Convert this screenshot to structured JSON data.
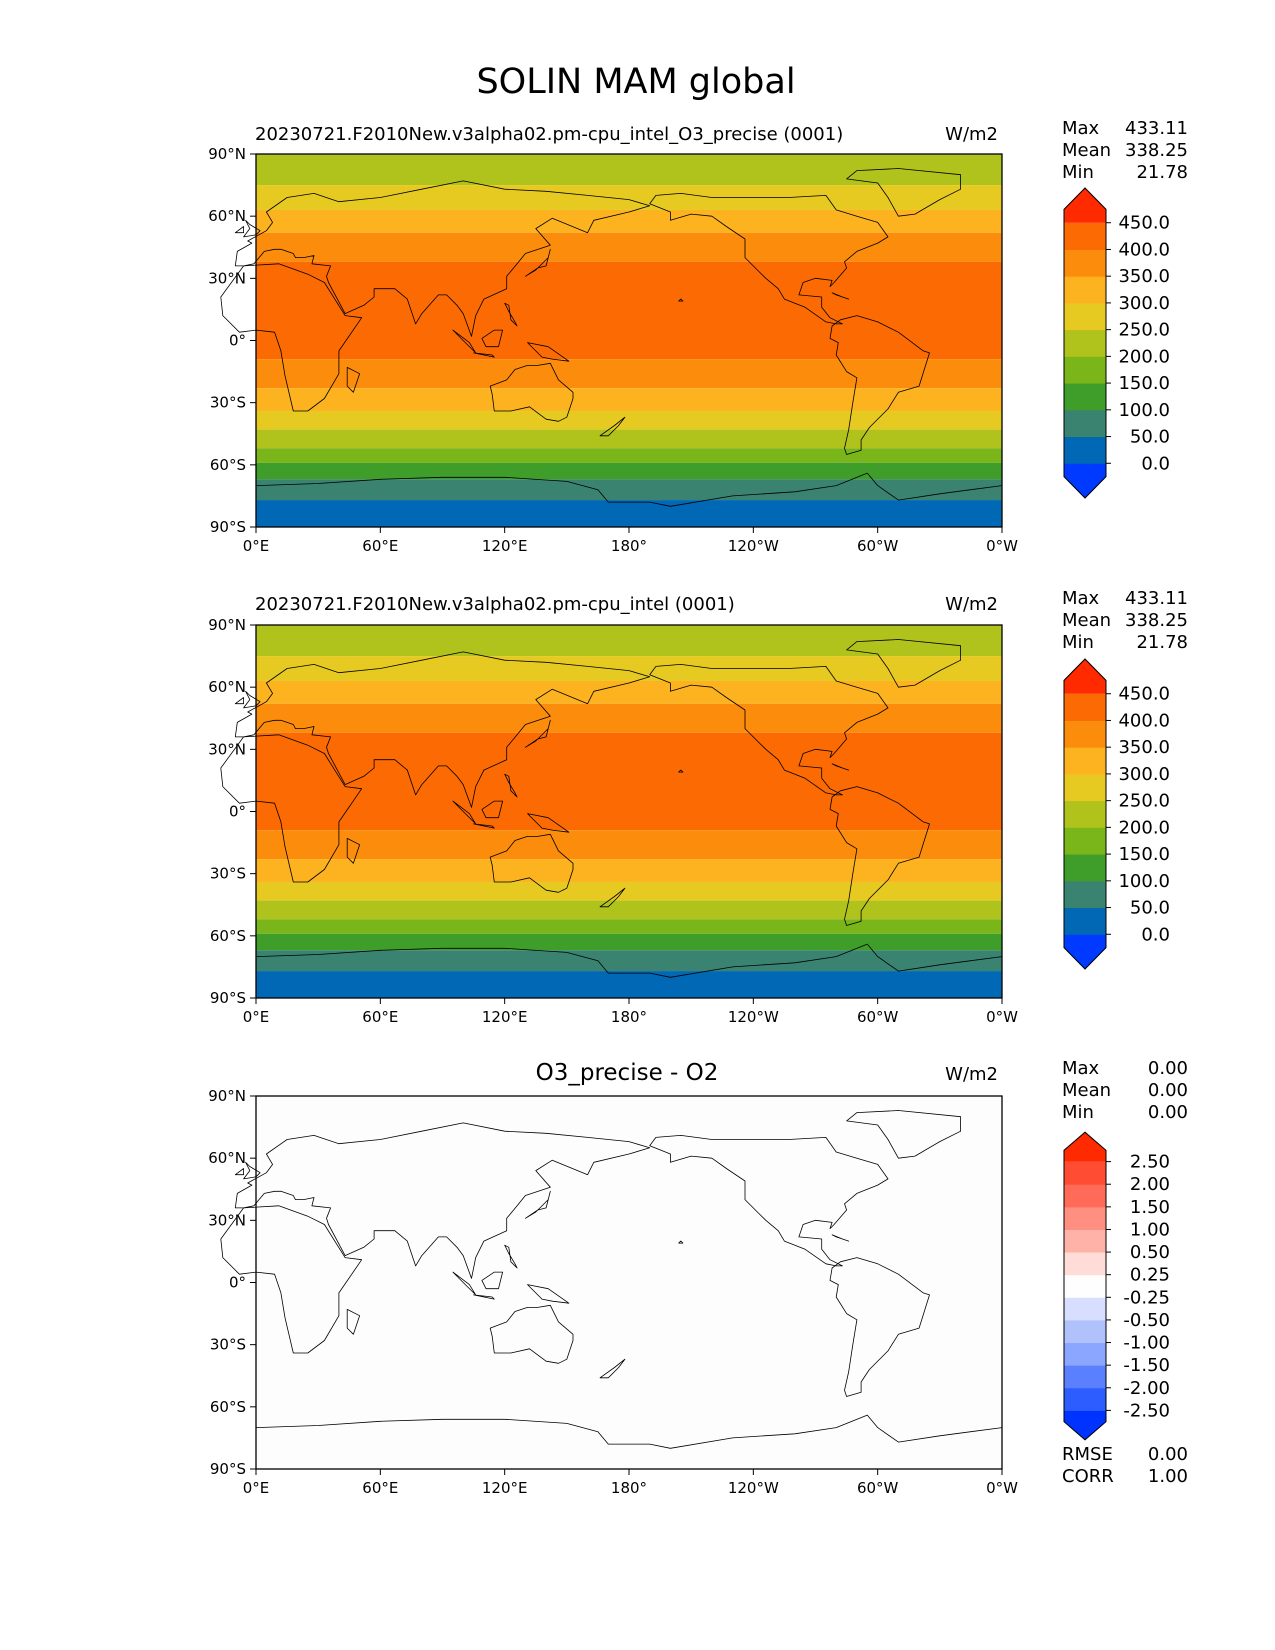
{
  "figure_title": "SOLIN MAM global",
  "lon_ticks": [
    "0°E",
    "60°E",
    "120°E",
    "180°",
    "120°W",
    "60°W",
    "0°W"
  ],
  "lat_ticks": [
    "90°N",
    "60°N",
    "30°N",
    "0°",
    "30°S",
    "60°S",
    "90°S"
  ],
  "panels": [
    {
      "title": "20230721.F2010New.v3alpha02.pm-cpu_intel_O3_precise (0001)",
      "units": "W/m2",
      "stats": {
        "max_label": "Max",
        "max": "433.11",
        "mean_label": "Mean",
        "mean": "338.25",
        "min_label": "Min",
        "min": "21.78"
      }
    },
    {
      "title": "20230721.F2010New.v3alpha02.pm-cpu_intel (0001)",
      "units": "W/m2",
      "stats": {
        "max_label": "Max",
        "max": "433.11",
        "mean_label": "Mean",
        "mean": "338.25",
        "min_label": "Min",
        "min": "21.78"
      }
    },
    {
      "title": "O3_precise - O2",
      "units": "W/m2",
      "stats": {
        "max_label": "Max",
        "max": "0.00",
        "mean_label": "Mean",
        "mean": "0.00",
        "min_label": "Min",
        "min": "0.00"
      },
      "metrics": {
        "rmse_label": "RMSE",
        "rmse": "0.00",
        "corr_label": "CORR",
        "corr": "1.00"
      }
    }
  ],
  "chart_data": [
    {
      "type": "heatmap",
      "title": "20230721.F2010New.v3alpha02.pm-cpu_intel_O3_precise (0001)",
      "variable": "SOLIN",
      "season": "MAM",
      "units": "W/m2",
      "lon_range": [
        0,
        360
      ],
      "lat_range": [
        -90,
        90
      ],
      "bands": [
        {
          "lat_from": 75,
          "lat_to": 90,
          "level": 200
        },
        {
          "lat_from": 63,
          "lat_to": 75,
          "level": 250
        },
        {
          "lat_from": 52,
          "lat_to": 63,
          "level": 300
        },
        {
          "lat_from": 38,
          "lat_to": 52,
          "level": 350
        },
        {
          "lat_from": -9,
          "lat_to": 38,
          "level": 400
        },
        {
          "lat_from": -23,
          "lat_to": -9,
          "level": 350
        },
        {
          "lat_from": -34,
          "lat_to": -23,
          "level": 300
        },
        {
          "lat_from": -43,
          "lat_to": -34,
          "level": 250
        },
        {
          "lat_from": -52,
          "lat_to": -43,
          "level": 200
        },
        {
          "lat_from": -59,
          "lat_to": -52,
          "level": 150
        },
        {
          "lat_from": -67,
          "lat_to": -59,
          "level": 100
        },
        {
          "lat_from": -77,
          "lat_to": -67,
          "level": 50
        },
        {
          "lat_from": -90,
          "lat_to": -77,
          "level": 0
        }
      ],
      "colorbar": {
        "levels": [
          "0.0",
          "50.0",
          "100.0",
          "150.0",
          "200.0",
          "250.0",
          "300.0",
          "350.0",
          "400.0",
          "450.0"
        ],
        "colors": [
          "#0039ff",
          "#0068b4",
          "#3a8371",
          "#3f9e2a",
          "#7ab519",
          "#b0c21c",
          "#e6ca22",
          "#fcb31f",
          "#fc8c0b",
          "#fc6a03",
          "#ff2a00"
        ]
      }
    },
    {
      "type": "heatmap",
      "title": "20230721.F2010New.v3alpha02.pm-cpu_intel (0001)",
      "variable": "SOLIN",
      "season": "MAM",
      "units": "W/m2",
      "lon_range": [
        0,
        360
      ],
      "lat_range": [
        -90,
        90
      ],
      "bands": [
        {
          "lat_from": 75,
          "lat_to": 90,
          "level": 200
        },
        {
          "lat_from": 63,
          "lat_to": 75,
          "level": 250
        },
        {
          "lat_from": 52,
          "lat_to": 63,
          "level": 300
        },
        {
          "lat_from": 38,
          "lat_to": 52,
          "level": 350
        },
        {
          "lat_from": -9,
          "lat_to": 38,
          "level": 400
        },
        {
          "lat_from": -23,
          "lat_to": -9,
          "level": 350
        },
        {
          "lat_from": -34,
          "lat_to": -23,
          "level": 300
        },
        {
          "lat_from": -43,
          "lat_to": -34,
          "level": 250
        },
        {
          "lat_from": -52,
          "lat_to": -43,
          "level": 200
        },
        {
          "lat_from": -59,
          "lat_to": -52,
          "level": 150
        },
        {
          "lat_from": -67,
          "lat_to": -59,
          "level": 100
        },
        {
          "lat_from": -77,
          "lat_to": -67,
          "level": 50
        },
        {
          "lat_from": -90,
          "lat_to": -77,
          "level": 0
        }
      ],
      "colorbar": {
        "levels": [
          "0.0",
          "50.0",
          "100.0",
          "150.0",
          "200.0",
          "250.0",
          "300.0",
          "350.0",
          "400.0",
          "450.0"
        ],
        "colors": [
          "#0039ff",
          "#0068b4",
          "#3a8371",
          "#3f9e2a",
          "#7ab519",
          "#b0c21c",
          "#e6ca22",
          "#fcb31f",
          "#fc8c0b",
          "#fc6a03",
          "#ff2a00"
        ]
      }
    },
    {
      "type": "heatmap",
      "title": "O3_precise - O2",
      "units": "W/m2",
      "lon_range": [
        0,
        360
      ],
      "lat_range": [
        -90,
        90
      ],
      "bands": [
        {
          "lat_from": -90,
          "lat_to": 90,
          "level": 0
        }
      ],
      "colorbar": {
        "levels": [
          "-2.50",
          "-2.00",
          "-1.50",
          "-1.00",
          "-0.50",
          "-0.25",
          "0.25",
          "0.50",
          "1.00",
          "1.50",
          "2.00",
          "2.50"
        ],
        "colors": [
          "#0033ff",
          "#2e5dff",
          "#5a80ff",
          "#8aa6ff",
          "#b0c1fb",
          "#d7deff",
          "#fefefe",
          "#ffdcd8",
          "#ffb3a8",
          "#ff8f80",
          "#ff6b58",
          "#ff4c33",
          "#ff2a00"
        ]
      }
    }
  ]
}
